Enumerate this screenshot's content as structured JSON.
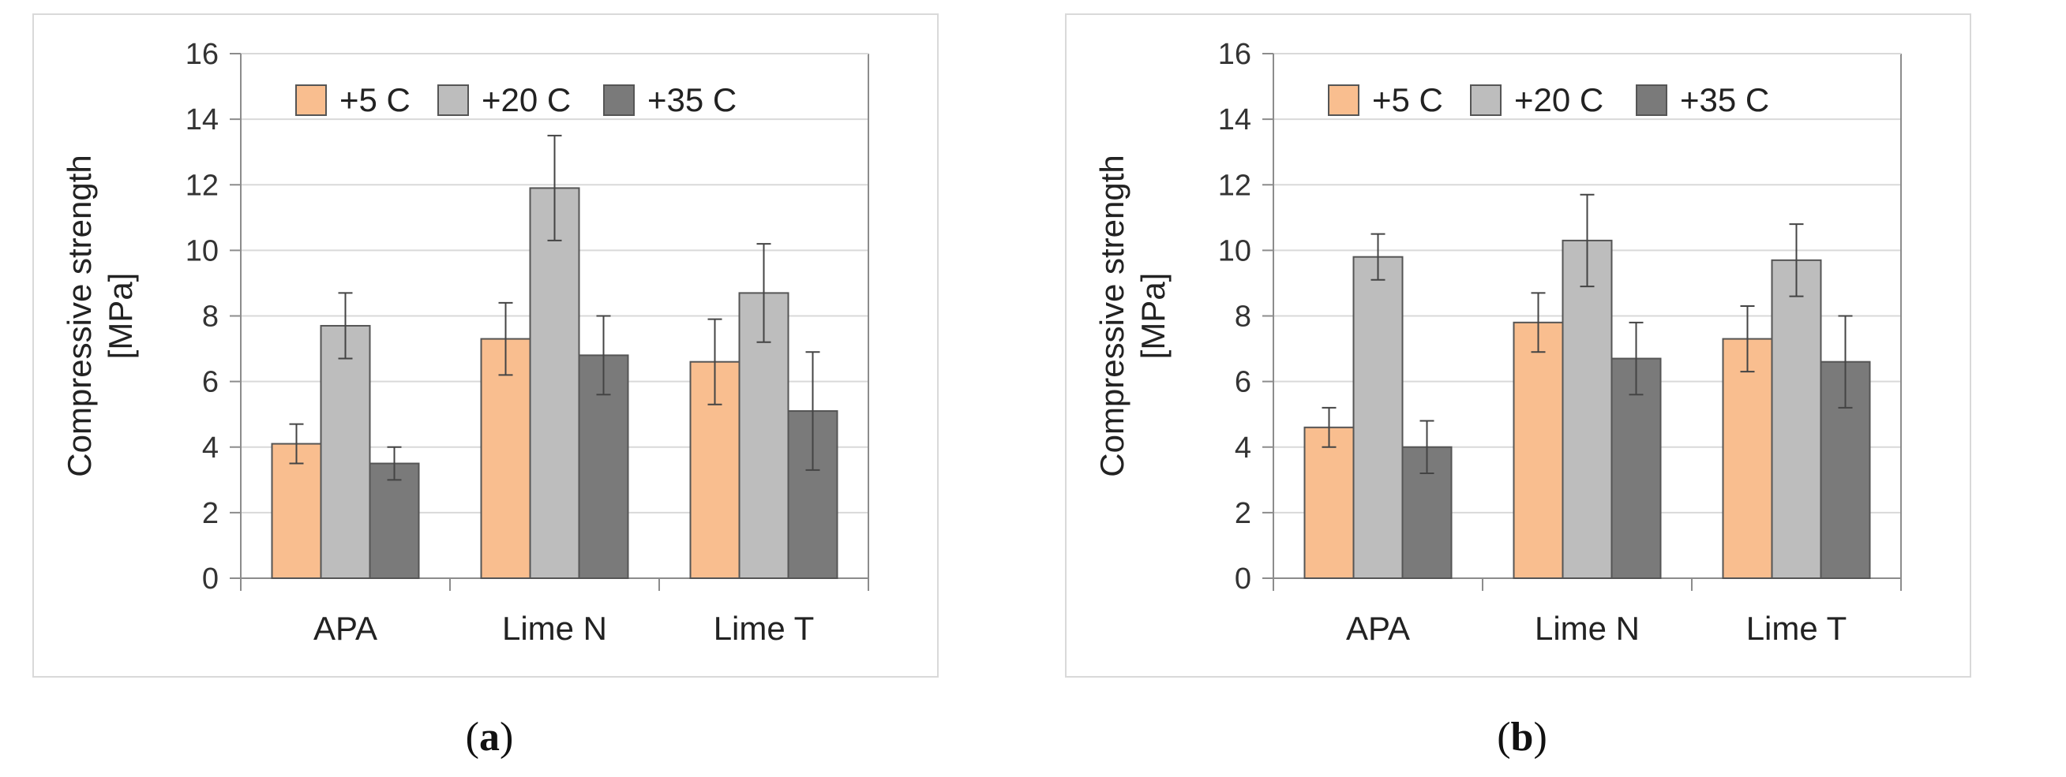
{
  "chart_data": [
    {
      "type": "bar",
      "panel_label": "a",
      "ylabel_line1": "Compressive strength",
      "ylabel_line2": "[MPa]",
      "ylim": [
        0,
        16
      ],
      "yticks": [
        "0",
        "2",
        "4",
        "6",
        "8",
        "10",
        "12",
        "14",
        "16"
      ],
      "categories": [
        "APA",
        "Lime N",
        "Lime T"
      ],
      "legend_position": "top",
      "series": [
        {
          "name": "+5 C",
          "color": "#F9BE8F",
          "values": [
            4.1,
            7.3,
            6.6
          ],
          "errors": [
            0.6,
            1.1,
            1.3
          ]
        },
        {
          "name": "+20 C",
          "color": "#BDBDBD",
          "values": [
            7.7,
            11.9,
            8.7
          ],
          "errors": [
            1.0,
            1.6,
            1.5
          ]
        },
        {
          "name": "+35 C",
          "color": "#7A7A7A",
          "values": [
            3.5,
            6.8,
            5.1
          ],
          "errors": [
            0.5,
            1.2,
            1.8
          ]
        }
      ]
    },
    {
      "type": "bar",
      "panel_label": "b",
      "ylabel_line1": "Compressive strength",
      "ylabel_line2": "[MPa]",
      "ylim": [
        0,
        16
      ],
      "yticks": [
        "0",
        "2",
        "4",
        "6",
        "8",
        "10",
        "12",
        "14",
        "16"
      ],
      "categories": [
        "APA",
        "Lime N",
        "Lime T"
      ],
      "legend_position": "top",
      "series": [
        {
          "name": "+5 C",
          "color": "#F9BE8F",
          "values": [
            4.6,
            7.8,
            7.3
          ],
          "errors": [
            0.6,
            0.9,
            1.0
          ]
        },
        {
          "name": "+20 C",
          "color": "#BDBDBD",
          "values": [
            9.8,
            10.3,
            9.7
          ],
          "errors": [
            0.7,
            1.4,
            1.1
          ]
        },
        {
          "name": "+35 C",
          "color": "#7A7A7A",
          "values": [
            4.0,
            6.7,
            6.6
          ],
          "errors": [
            0.8,
            1.1,
            1.4
          ]
        }
      ]
    }
  ]
}
